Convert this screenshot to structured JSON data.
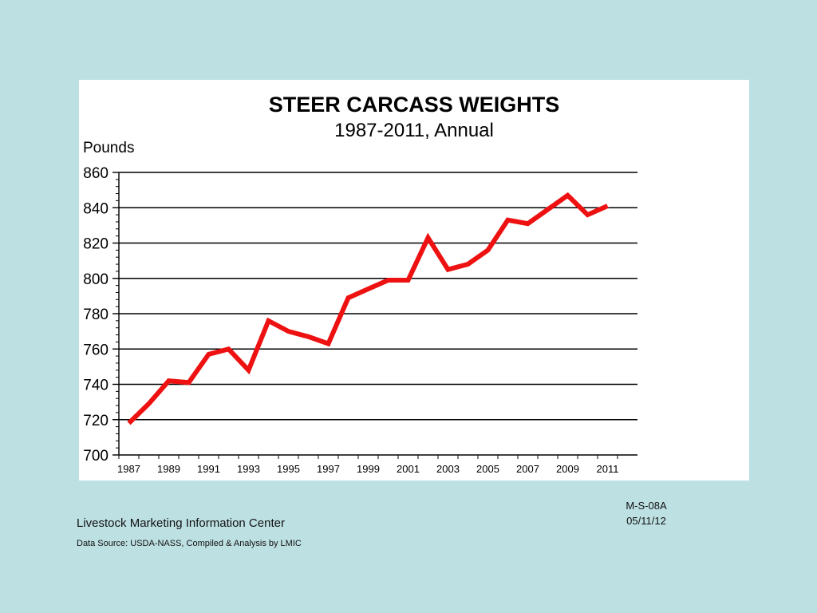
{
  "chart_data": {
    "type": "line",
    "title": "STEER CARCASS WEIGHTS",
    "subtitle": "1987-2011, Annual",
    "ylabel": "Pounds",
    "xlabel": "",
    "ylim": [
      700,
      860
    ],
    "yticks": [
      700,
      720,
      740,
      760,
      780,
      800,
      820,
      840,
      860
    ],
    "xlim": [
      1986.5,
      2012.5
    ],
    "xticks": [
      1987,
      1989,
      1991,
      1993,
      1995,
      1997,
      1999,
      2001,
      2003,
      2005,
      2007,
      2009,
      2011
    ],
    "grid": "horizontal",
    "legend": "none",
    "series": [
      {
        "color": "#ee1111",
        "x": [
          1987,
          1988,
          1989,
          1990,
          1991,
          1992,
          1993,
          1994,
          1995,
          1996,
          1997,
          1998,
          1999,
          2000,
          2001,
          2002,
          2003,
          2004,
          2005,
          2006,
          2007,
          2008,
          2009,
          2010,
          2011
        ],
        "values": [
          718,
          729,
          742,
          741,
          757,
          760,
          748,
          776,
          770,
          767,
          763,
          789,
          794,
          799,
          799,
          823,
          805,
          808,
          816,
          833,
          831,
          839,
          847,
          836,
          841
        ]
      }
    ]
  },
  "footer": {
    "org_name": "Livestock Marketing Information Center",
    "data_source": "Data Source:  USDA-NASS, Compiled & Analysis by LMIC",
    "chart_code": "M-S-08A",
    "chart_date": "05/11/12"
  }
}
